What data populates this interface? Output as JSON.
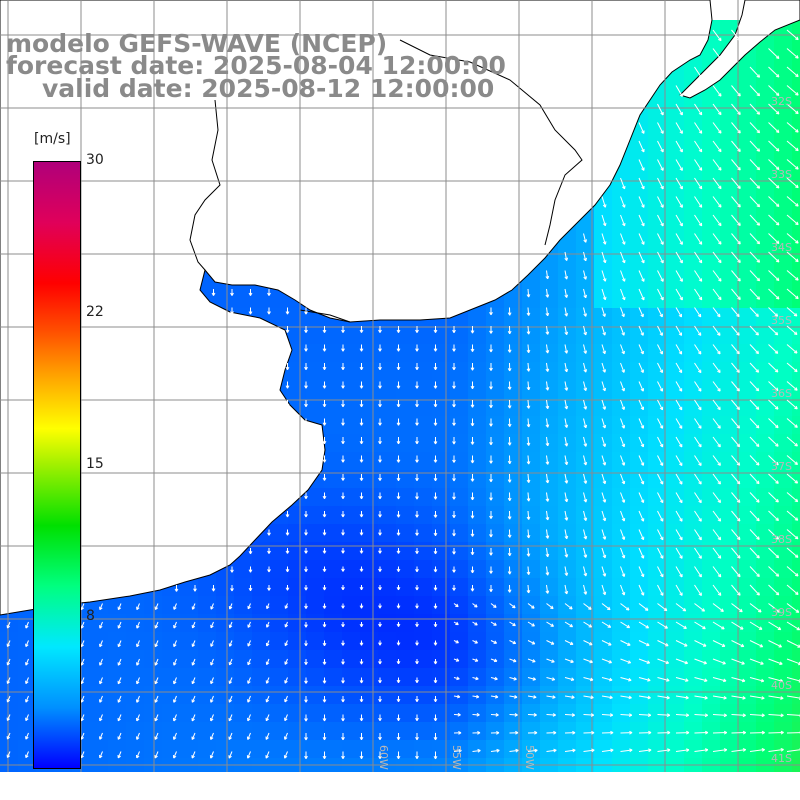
{
  "title": {
    "line1": "modelo GEFS-WAVE (NCEP)",
    "line2": "forecast date: 2025-08-04 12:00:00",
    "line3": "valid date: 2025-08-12 12:00:00"
  },
  "colorbar": {
    "unit": "[m/s]",
    "ticks": [
      {
        "label": "30",
        "value": 30
      },
      {
        "label": "22",
        "value": 22
      },
      {
        "label": "15",
        "value": 15
      },
      {
        "label": "8",
        "value": 8
      }
    ]
  },
  "axis_labels": {
    "lat": [
      "32S",
      "33S",
      "34S",
      "35S",
      "36S",
      "37S",
      "38S",
      "39S",
      "40S",
      "41S"
    ],
    "lon": [
      "60W",
      "55W",
      "50W"
    ]
  },
  "colors": {
    "land": "#ffffff",
    "coast": "#000000",
    "grid": "#8c8c8c",
    "arrow": "#ffffff",
    "title": "#8a8a8a"
  },
  "wind_field": {
    "description_units": "m/s",
    "sample_points": [
      {
        "lon": -58.0,
        "lat": -36.5,
        "speed": 3,
        "direction": "S"
      },
      {
        "lon": -54.0,
        "lat": -37.5,
        "speed": 3,
        "direction": "SSE"
      },
      {
        "lon": -52.5,
        "lat": -39.5,
        "speed": 1,
        "direction": "SE"
      },
      {
        "lon": -49.5,
        "lat": -35.0,
        "speed": 7,
        "direction": "SSE"
      },
      {
        "lon": -48.5,
        "lat": -37.5,
        "speed": 9,
        "direction": "SE"
      },
      {
        "lon": -47.5,
        "lat": -40.0,
        "speed": 11,
        "direction": "ENE"
      },
      {
        "lon": -50.0,
        "lat": -31.5,
        "speed": 5,
        "direction": "SSW"
      }
    ]
  }
}
